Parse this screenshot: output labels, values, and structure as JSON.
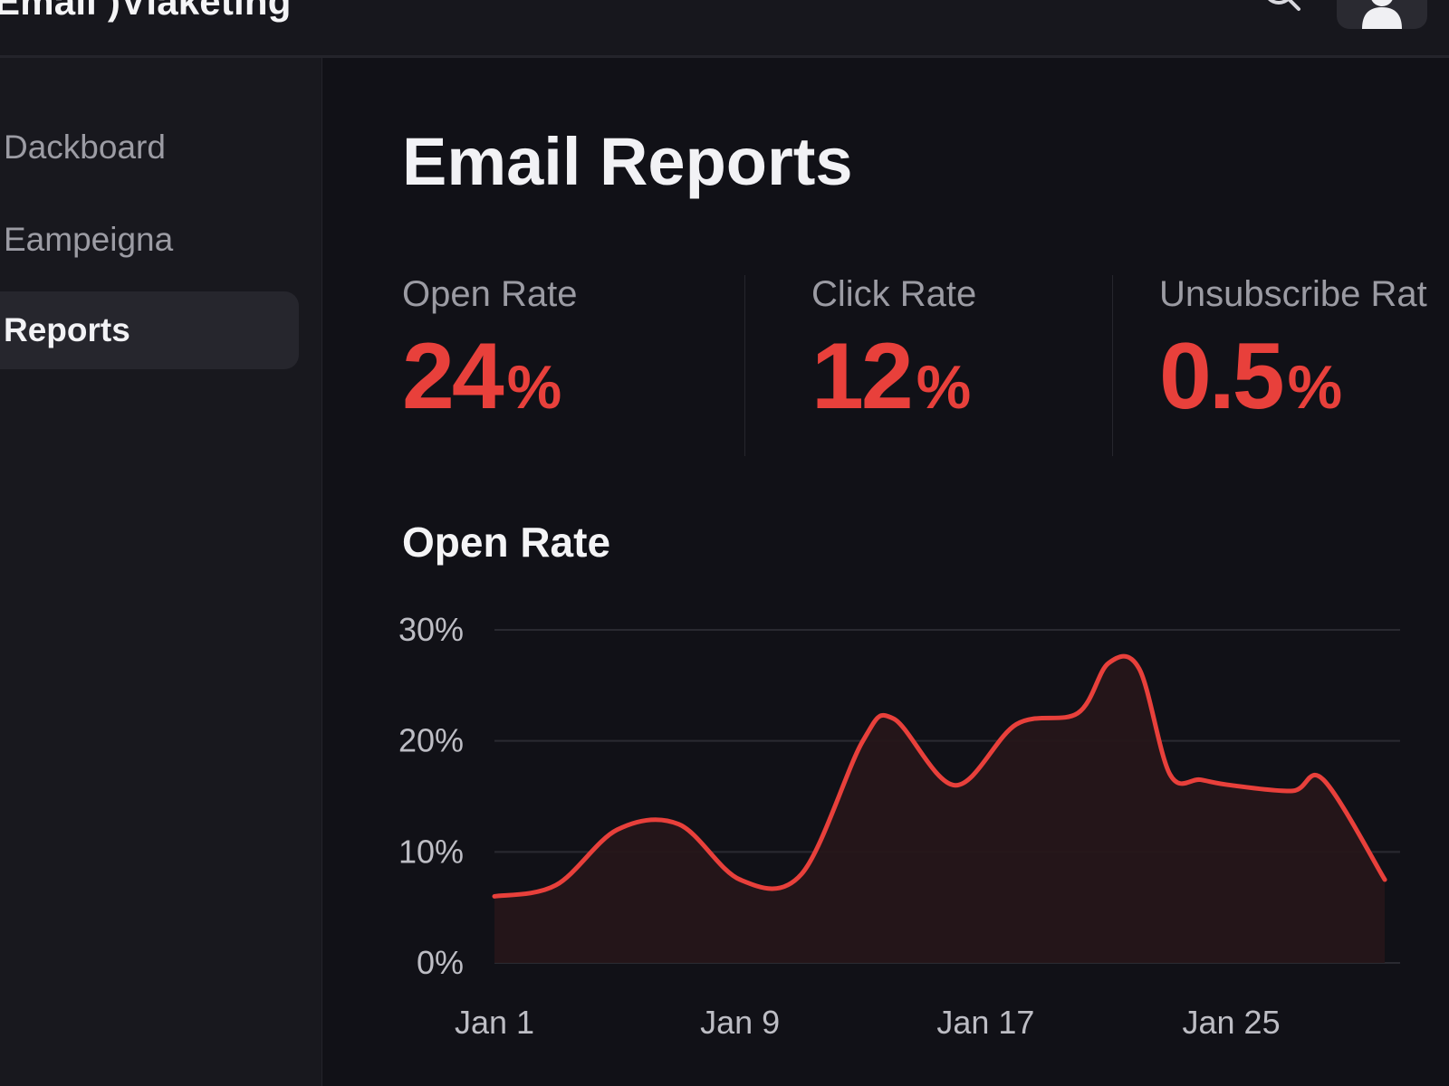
{
  "header": {
    "app_title": "Email )Vlaketing",
    "search_icon": "search-icon",
    "avatar_icon": "user-icon"
  },
  "sidebar": {
    "items": [
      {
        "label": "Dackboard",
        "active": false
      },
      {
        "label": "Eampeigna",
        "active": false
      },
      {
        "label": "Reports",
        "active": true
      }
    ]
  },
  "main": {
    "title": "Email Reports",
    "metrics": [
      {
        "label": "Open Rate",
        "value": "24",
        "unit": "%"
      },
      {
        "label": "Click Rate",
        "value": "12",
        "unit": "%"
      },
      {
        "label": "Unsubscribe Rat",
        "value": "0.5",
        "unit": "%"
      }
    ],
    "chart_title": "Open Rate"
  },
  "colors": {
    "accent": "#e8403b",
    "background": "#111117",
    "sidebar": "#18181e",
    "active_item": "#26262d"
  },
  "chart_data": {
    "type": "area",
    "title": "Open Rate",
    "xlabel": "",
    "ylabel": "",
    "x": [
      1,
      3,
      5,
      7,
      9,
      11,
      13,
      14,
      16,
      18,
      20,
      21,
      22,
      23,
      24,
      25,
      27,
      28,
      30
    ],
    "x_tick_labels": [
      {
        "x": 1,
        "label": "Jan 1"
      },
      {
        "x": 9,
        "label": "Jan 9"
      },
      {
        "x": 17,
        "label": "Jan 17"
      },
      {
        "x": 25,
        "label": "Jan 25"
      }
    ],
    "xlim": [
      1,
      30.5
    ],
    "series": [
      {
        "values": [
          6,
          7,
          12,
          12.5,
          7.5,
          8,
          20,
          22,
          16,
          21.5,
          22.5,
          27,
          26.5,
          17,
          16.5,
          16,
          15.5,
          16.5,
          7.5
        ]
      }
    ],
    "yticks": [
      "0%",
      "10%",
      "20%",
      "30%"
    ],
    "ylim": [
      0,
      30
    ],
    "grid": true,
    "color": "#e8403b"
  }
}
